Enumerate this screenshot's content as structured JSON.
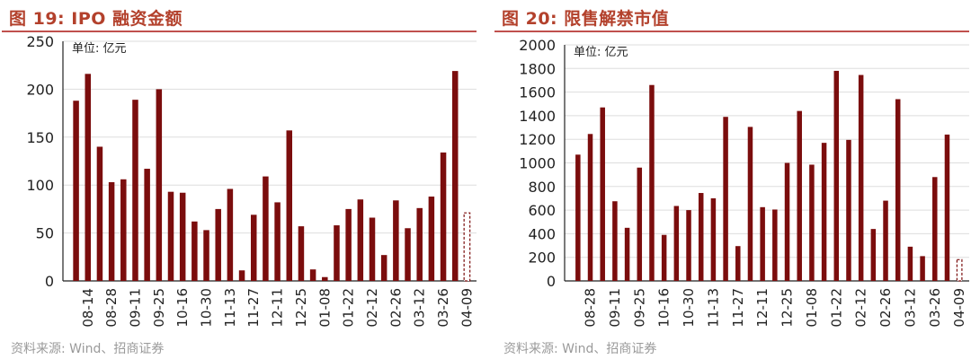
{
  "charts": [
    {
      "title": "图 19:  IPO 融资金额",
      "unit": "单位: 亿元",
      "source": "资料来源: Wind、招商证券",
      "chart_data": {
        "type": "bar",
        "title": "图 19:  IPO 融资金额",
        "ylabel": "单位: 亿元",
        "ylim": [
          0,
          250
        ],
        "yticks": [
          0,
          50,
          100,
          150,
          200,
          250
        ],
        "grid": true,
        "x_labels": [
          "08-14",
          "08-28",
          "09-11",
          "09-25",
          "10-16",
          "10-30",
          "11-13",
          "11-27",
          "12-11",
          "12-25",
          "01-08",
          "01-22",
          "02-12",
          "02-26",
          "03-12",
          "03-26",
          "04-09"
        ],
        "values": [
          188,
          216,
          140,
          103,
          106,
          189,
          117,
          200,
          93,
          92,
          62,
          53,
          75,
          96,
          11,
          69,
          109,
          82,
          157,
          57,
          12,
          4,
          58,
          75,
          85,
          66,
          27,
          84,
          55,
          76,
          88,
          134,
          219
        ],
        "projected_value": 71,
        "series_color": "#7b0d0d"
      }
    },
    {
      "title": "图 20:  限售解禁市值",
      "unit": "单位: 亿元",
      "source": "资料来源: Wind、招商证券",
      "chart_data": {
        "type": "bar",
        "title": "图 20:  限售解禁市值",
        "ylabel": "单位: 亿元",
        "ylim": [
          0,
          2000
        ],
        "yticks": [
          0,
          200,
          400,
          600,
          800,
          1000,
          1200,
          1400,
          1600,
          1800,
          2000
        ],
        "grid": true,
        "x_labels": [
          "08-28",
          "09-11",
          "09-25",
          "10-16",
          "10-30",
          "11-13",
          "11-27",
          "12-11",
          "12-25",
          "01-08",
          "01-22",
          "02-12",
          "02-26",
          "03-12",
          "03-26",
          "04-09"
        ],
        "values": [
          1070,
          1245,
          1470,
          675,
          450,
          960,
          1660,
          390,
          635,
          600,
          745,
          700,
          1390,
          295,
          1305,
          625,
          605,
          1000,
          1440,
          985,
          1170,
          1780,
          1195,
          1745,
          440,
          680,
          1540,
          290,
          210,
          880,
          1240
        ],
        "projected_value": 180,
        "series_color": "#7b0d0d"
      }
    }
  ]
}
